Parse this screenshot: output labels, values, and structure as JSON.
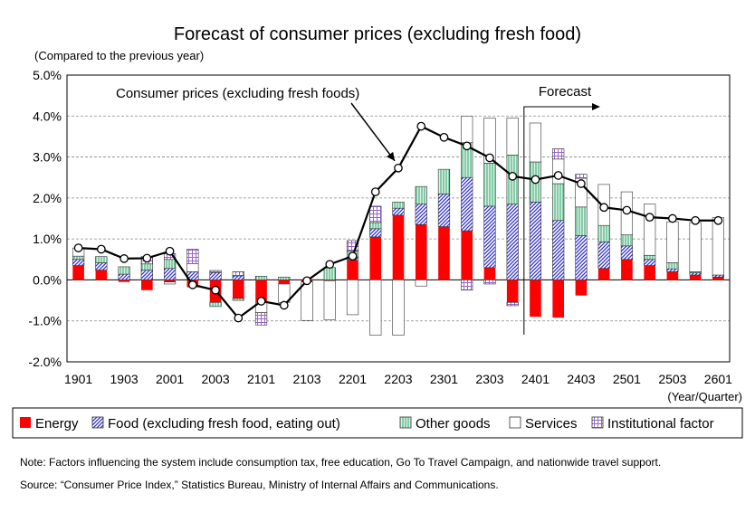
{
  "chart_data": {
    "type": "bar",
    "title": "Forecast of consumer prices (excluding fresh food)",
    "subtitle": "(Compared to the previous year)",
    "ylim": [
      -2.0,
      5.0
    ],
    "yticks": [
      "5.0%",
      "4.0%",
      "3.0%",
      "2.0%",
      "1.0%",
      "0.0%",
      "-1.0%",
      "-2.0%"
    ],
    "ytick_values": [
      5,
      4,
      3,
      2,
      1,
      0,
      -1,
      -2
    ],
    "xtick_labels": [
      "1901",
      "1903",
      "2001",
      "2003",
      "2101",
      "2103",
      "2201",
      "2203",
      "2301",
      "2303",
      "2401",
      "2403",
      "2501",
      "2503",
      "2601"
    ],
    "xtick_indices": [
      0,
      2,
      4,
      6,
      8,
      10,
      12,
      14,
      16,
      18,
      20,
      22,
      24,
      26,
      28
    ],
    "xunit": "(Year/Quarter)",
    "grid": "horizontal dashed",
    "stacked": true,
    "n_quarters": 29,
    "series": [
      {
        "name": "Energy",
        "color": "#ff0000",
        "pattern": "solid",
        "values": [
          0.35,
          0.24,
          -0.05,
          -0.25,
          -0.05,
          -0.18,
          -0.55,
          -0.45,
          -0.55,
          -0.1,
          -0.05,
          -0.02,
          0.48,
          1.05,
          1.58,
          1.35,
          1.3,
          1.2,
          0.3,
          -0.55,
          -0.9,
          -0.92,
          -0.38,
          0.28,
          0.5,
          0.35,
          0.2,
          0.12,
          0.07
        ]
      },
      {
        "name": "Food (excluding fresh food, eating out)",
        "color": "#3333cc",
        "pattern": "diagonal",
        "values": [
          0.15,
          0.18,
          0.14,
          0.24,
          0.28,
          0.2,
          0.18,
          0.1,
          0.0,
          0.0,
          0.0,
          0.0,
          0.08,
          0.2,
          0.17,
          0.5,
          0.8,
          1.3,
          1.5,
          1.85,
          1.9,
          1.45,
          1.08,
          0.65,
          0.33,
          0.15,
          0.07,
          0.05,
          0.05
        ]
      },
      {
        "name": "Other goods",
        "color": "#2ea86b",
        "pattern": "hatch",
        "values": [
          0.08,
          0.15,
          0.18,
          0.15,
          0.22,
          0.0,
          -0.1,
          -0.05,
          0.09,
          0.07,
          0.0,
          0.3,
          0.15,
          0.15,
          0.15,
          0.43,
          0.6,
          0.85,
          1.05,
          1.2,
          0.98,
          0.9,
          0.7,
          0.4,
          0.27,
          0.1,
          0.15,
          0.03,
          0.0
        ]
      },
      {
        "name": "Services",
        "color": "#ffffff",
        "pattern": "blank",
        "values": [
          0.2,
          0.0,
          0.0,
          0.0,
          -0.05,
          0.2,
          0.0,
          0.0,
          -0.25,
          -0.45,
          -0.94,
          -0.95,
          -0.85,
          -1.35,
          -1.35,
          -0.15,
          0.0,
          0.65,
          1.1,
          0.9,
          0.95,
          0.6,
          0.7,
          1.0,
          1.05,
          1.25,
          1.0,
          1.2,
          1.4
        ]
      },
      {
        "name": "Institutional factor",
        "color": "#9966cc",
        "pattern": "grid",
        "values": [
          0.0,
          0.0,
          0.0,
          0.18,
          0.14,
          0.35,
          0.05,
          0.1,
          -0.3,
          0.0,
          0.0,
          0.0,
          0.25,
          0.4,
          0.0,
          0.0,
          0.0,
          -0.25,
          -0.1,
          -0.08,
          0.0,
          0.25,
          0.1,
          0.0,
          0.0,
          0.0,
          0.0,
          0.0,
          0.0
        ]
      }
    ],
    "line": {
      "name": "Consumer prices (excluding fresh foods)",
      "values": [
        0.78,
        0.75,
        0.52,
        0.53,
        0.7,
        -0.12,
        -0.25,
        -0.93,
        -0.52,
        -0.62,
        -0.02,
        0.38,
        0.58,
        2.15,
        2.73,
        3.75,
        3.48,
        3.27,
        2.98,
        2.53,
        2.45,
        2.55,
        2.35,
        1.77,
        1.7,
        1.53,
        1.5,
        1.45,
        1.45
      ]
    },
    "annotations": {
      "line_label": "Consumer prices (excluding fresh foods)",
      "forecast_label": "Forecast",
      "forecast_start_index": 19.5
    },
    "legend_position": "bottom",
    "notes": [
      "Note: Factors influencing the system include consumption tax, free education, Go To Travel Campaign, and nationwide travel support.",
      "Source: “Consumer Price Index,” Statistics Bureau, Ministry of Internal Affairs and Communications."
    ]
  }
}
